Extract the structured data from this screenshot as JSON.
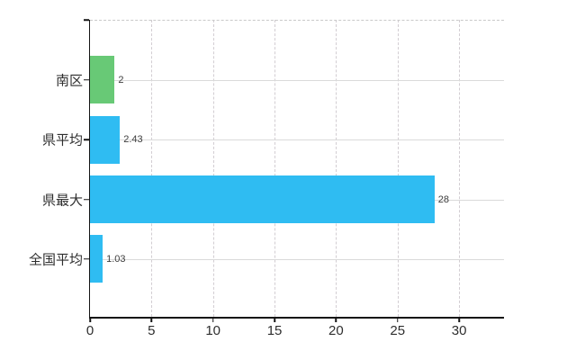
{
  "chart_data": {
    "type": "bar",
    "orientation": "horizontal",
    "title": "",
    "xlabel": "",
    "ylabel": "",
    "categories": [
      "南区",
      "県平均",
      "県最大",
      "全国平均"
    ],
    "values": [
      2,
      2.43,
      28,
      1.03
    ],
    "value_labels": [
      "2",
      "2.43",
      "28",
      "1.03"
    ],
    "bar_colors": [
      "#68c976",
      "#2fbcf2",
      "#2fbcf2",
      "#2fbcf2"
    ],
    "x_ticks": [
      0,
      5,
      10,
      15,
      20,
      25,
      30
    ],
    "xlim": [
      0,
      33.65
    ],
    "grid": true,
    "grid_style": "vertical-dashed-horizontal-solid-top-dashed",
    "legend": false,
    "colors": {
      "bar_blue": "#2fbcf2",
      "bar_green": "#68c976",
      "gridline": "#dadada",
      "gridline_dashed": "#cecece",
      "axis": "#141414",
      "axis_text": "#2e2e2e",
      "value_text": "#3d3d3d",
      "background": "#ffffff"
    }
  }
}
